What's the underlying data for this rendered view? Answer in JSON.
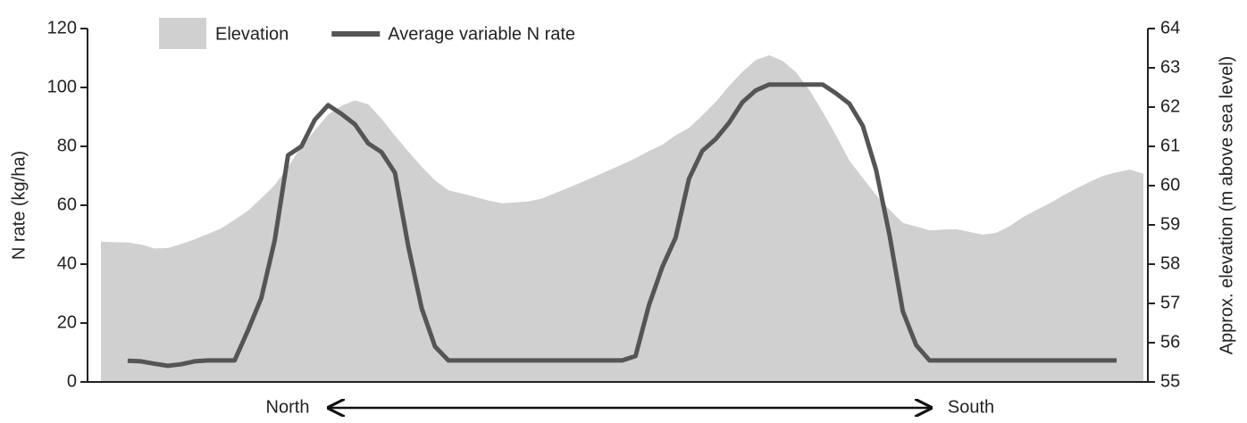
{
  "chart_data": {
    "type": "line",
    "categories": [
      null,
      null,
      null,
      null,
      null,
      null,
      null,
      null,
      null,
      null,
      null,
      null,
      null,
      null,
      null,
      null,
      null,
      null,
      null,
      null,
      null,
      null,
      null,
      null,
      null,
      null,
      null,
      null,
      null,
      null,
      null,
      null,
      null,
      null,
      null,
      null,
      null,
      null,
      null,
      null,
      null,
      null,
      null,
      null,
      null,
      null,
      null,
      null,
      null,
      null,
      null,
      null,
      null,
      null,
      null,
      null,
      null,
      null,
      null,
      null,
      null,
      null,
      null,
      null,
      null,
      null,
      null,
      null,
      null,
      null,
      null,
      null,
      null,
      null,
      null,
      null,
      null,
      null,
      null
    ],
    "series": [
      {
        "name": "Elevation",
        "type": "area",
        "axis": "y2",
        "color": "#d0d0d0",
        "values": [
          58.57,
          58.56,
          58.55,
          58.5,
          58.4,
          58.41,
          58.51,
          58.63,
          58.77,
          58.91,
          59.13,
          59.36,
          59.68,
          60.01,
          60.48,
          60.99,
          61.41,
          61.81,
          62.03,
          62.17,
          62.07,
          61.7,
          61.27,
          60.87,
          60.48,
          60.13,
          59.88,
          59.8,
          59.71,
          59.62,
          59.55,
          59.57,
          59.6,
          59.67,
          59.81,
          59.95,
          60.09,
          60.24,
          60.39,
          60.54,
          60.7,
          60.88,
          61.04,
          61.28,
          61.47,
          61.79,
          62.13,
          62.54,
          62.9,
          63.2,
          63.32,
          63.18,
          62.89,
          62.44,
          61.88,
          61.28,
          60.64,
          60.2,
          59.76,
          59.39,
          59.05,
          58.96,
          58.86,
          58.88,
          58.89,
          58.82,
          58.75,
          58.8,
          58.97,
          59.2,
          59.38,
          59.55,
          59.75,
          59.93,
          60.1,
          60.25,
          60.34,
          60.41,
          60.3
        ]
      },
      {
        "name": "Average variable N rate",
        "type": "line",
        "axis": "y",
        "color": "#555555",
        "values": [
          null,
          null,
          7.2,
          7,
          6.2,
          5.5,
          6,
          7,
          7.3,
          7.3,
          7.3,
          17.5,
          28.5,
          48,
          77,
          80,
          89,
          94,
          91,
          87.5,
          81,
          78,
          71,
          46,
          25,
          12,
          7.3,
          7.3,
          7.3,
          7.3,
          7.3,
          7.3,
          7.3,
          7.3,
          7.3,
          7.3,
          7.3,
          7.3,
          7.3,
          7.3,
          8.8,
          26,
          39,
          49,
          69,
          78.5,
          82.5,
          88,
          95,
          99,
          101,
          101,
          101,
          101,
          101,
          98,
          94.5,
          87,
          72,
          50,
          24,
          12.5,
          7.3,
          7.3,
          7.3,
          7.3,
          7.3,
          7.3,
          7.3,
          7.3,
          7.3,
          7.3,
          7.3,
          7.3,
          7.3,
          7.3,
          7.3,
          null,
          null
        ]
      }
    ],
    "ylabel": "N rate (kg/ha)",
    "y2label": "Approx. elevation (m above sea level)",
    "ylim": [
      0,
      120
    ],
    "yticks": [
      0,
      20,
      40,
      60,
      80,
      100,
      120
    ],
    "y2lim": [
      55,
      64
    ],
    "y2ticks": [
      55,
      56,
      57,
      58,
      59,
      60,
      61,
      62,
      63,
      64
    ],
    "annotations": [
      "North",
      "South"
    ],
    "legend": "top-left"
  }
}
